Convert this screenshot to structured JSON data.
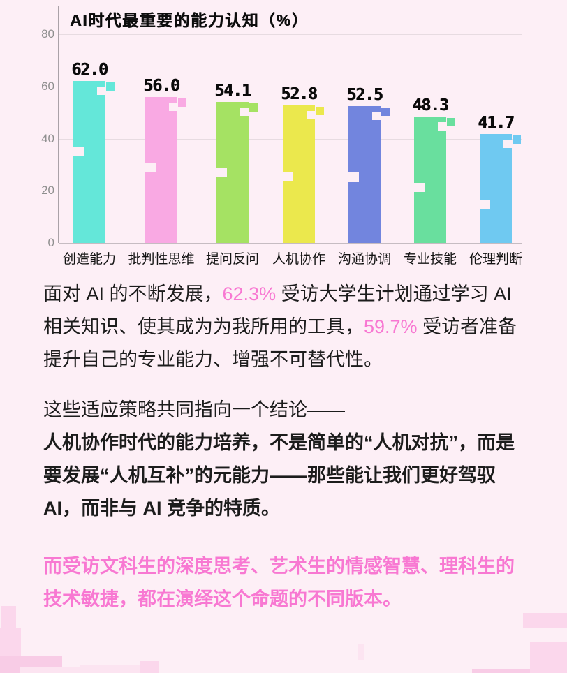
{
  "chart_data": {
    "type": "bar",
    "title": "AI时代最重要的能力认知（%）",
    "categories": [
      "创造能力",
      "批判性思维",
      "提问反问",
      "人机协作",
      "沟通协调",
      "专业技能",
      "伦理判断"
    ],
    "values": [
      62.0,
      56.0,
      54.1,
      52.8,
      52.5,
      48.3,
      41.7
    ],
    "value_labels": [
      "62.0",
      "56.0",
      "54.1",
      "52.8",
      "52.5",
      "48.3",
      "41.7"
    ],
    "bar_colors": [
      "#64e7d9",
      "#f9a9e3",
      "#a5e263",
      "#ebe84d",
      "#7285de",
      "#69df9e",
      "#6fc9f1"
    ],
    "xlabel": "",
    "ylabel": "",
    "ylim": [
      0,
      80
    ],
    "yticks": [
      0,
      20,
      40,
      60,
      80
    ],
    "grid": true,
    "legend": "none"
  },
  "paragraphs": {
    "stats_segments": [
      {
        "text": "面对 AI 的不断发展，",
        "style": "normal"
      },
      {
        "text": "62.3%",
        "style": "highlight"
      },
      {
        "text": " 受访大学生计划通过学习 AI 相关知识、使其成为为我所用的工具，",
        "style": "normal"
      },
      {
        "text": "59.7%",
        "style": "highlight"
      },
      {
        "text": " 受访者准备提升自己的专业能力、增强不可替代性。",
        "style": "normal"
      }
    ],
    "conclusion_intro": "这些适应策略共同指向一个结论——",
    "conclusion_bold": "人机协作时代的能力培养，不是简单的“人机对抗”，而是要发展“人机互补”的元能力——那些能让我们更好驾驭 AI，而非与 AI 竞争的特质。",
    "closing_pink": "而受访文科生的深度思考、艺术生的情感智慧、理科生的技术敏捷，都在演绎这个命题的不同版本。"
  },
  "colors": {
    "background": "#fdeff6",
    "accent_pink": "#f878d2",
    "body_text": "#1c1c1c",
    "grid_line": "#e7dbe1",
    "axis_line": "#aaa2a8",
    "tick_label": "#8f8f8f"
  }
}
